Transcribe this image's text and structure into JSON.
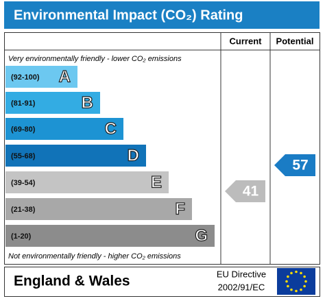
{
  "header": {
    "title": "Environmental Impact (CO₂) Rating"
  },
  "columns": {
    "current": "Current",
    "potential": "Potential"
  },
  "top_note": "Very environmentally friendly - lower CO₂ emissions",
  "bottom_note": "Not environmentally friendly - higher CO₂ emissions",
  "bands": [
    {
      "range": "(92-100)",
      "letter": "A",
      "color": "#6cc8f0"
    },
    {
      "range": "(81-91)",
      "letter": "B",
      "color": "#33ace3"
    },
    {
      "range": "(69-80)",
      "letter": "C",
      "color": "#1d93d3"
    },
    {
      "range": "(55-68)",
      "letter": "D",
      "color": "#1173b8"
    },
    {
      "range": "(39-54)",
      "letter": "E",
      "color": "#c4c4c4"
    },
    {
      "range": "(21-38)",
      "letter": "F",
      "color": "#a8a8a8"
    },
    {
      "range": "(1-20)",
      "letter": "G",
      "color": "#8c8c8c"
    }
  ],
  "current": {
    "value": 41,
    "color": "#bcbcbc"
  },
  "potential": {
    "value": 57,
    "color": "#1a7cc5"
  },
  "footer": {
    "region": "England & Wales",
    "directive_line1": "EU Directive",
    "directive_line2": "2002/91/EC"
  }
}
